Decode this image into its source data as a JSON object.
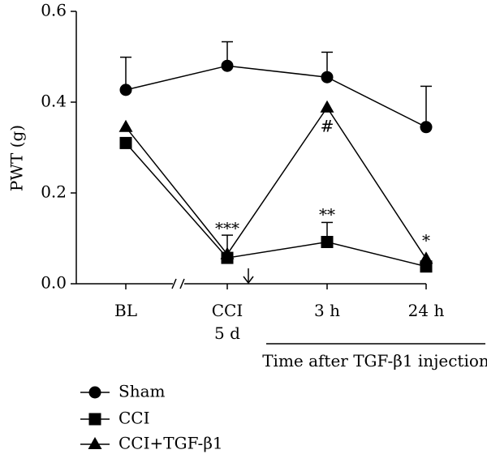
{
  "chart_data": {
    "type": "line",
    "ylabel": "PWT (g)",
    "yticks": [
      "0.0",
      "0.2",
      "0.4",
      "0.6"
    ],
    "ylim": [
      0,
      0.6
    ],
    "categories": [
      {
        "line1": "BL",
        "line2": ""
      },
      {
        "line1": "CCI",
        "line2": "5 d"
      },
      {
        "line1": "3 h",
        "line2": ""
      },
      {
        "line1": "24 h",
        "line2": ""
      }
    ],
    "x_note": "Time after TGF-β1 injection",
    "series": [
      {
        "name": "Sham",
        "marker": "circle",
        "values": [
          0.427,
          0.48,
          0.455,
          0.345
        ],
        "error": [
          0.072,
          0.053,
          0.055,
          0.09
        ]
      },
      {
        "name": "CCI",
        "marker": "square",
        "values": [
          0.31,
          0.057,
          0.092,
          0.038
        ],
        "error": [
          0,
          0.05,
          0.043,
          0
        ]
      },
      {
        "name": "CCI+TGF-β1",
        "marker": "triangle",
        "values": [
          0.345,
          0.065,
          0.388,
          0.055
        ],
        "error": [
          0,
          0,
          0,
          0
        ]
      }
    ],
    "annotations": [
      {
        "text": "***",
        "category": 1,
        "value": 0.11
      },
      {
        "text": "**",
        "category": 2,
        "value": 0.14
      },
      {
        "text": "#",
        "category": 2,
        "value": 0.335
      },
      {
        "text": "*",
        "category": 3,
        "value": 0.083
      }
    ],
    "axis_break": true,
    "injection_arrow_label": "",
    "grid": false,
    "legend_position": "bottom-left"
  }
}
